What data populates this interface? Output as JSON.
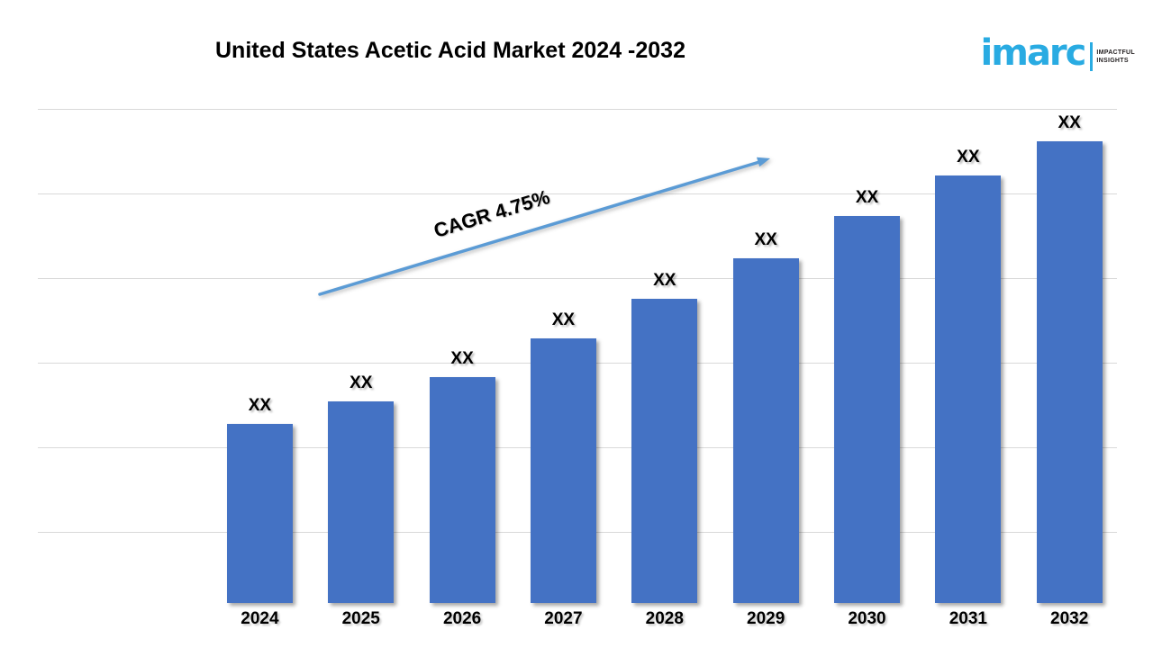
{
  "header": {
    "title": "United States Acetic Acid Market 2024 -2032"
  },
  "logo": {
    "brand": "imarc",
    "brand_color": "#29abe2",
    "tagline": [
      "IMPACTFUL",
      "INSIGHTS"
    ]
  },
  "chart_data": {
    "type": "bar",
    "title": "United States Acetic Acid Market 2024 -2032",
    "categories": [
      "2024",
      "2025",
      "2026",
      "2027",
      "2028",
      "2029",
      "2030",
      "2031",
      "2032"
    ],
    "values": [
      "XX",
      "XX",
      "XX",
      "XX",
      "XX",
      "XX",
      "XX",
      "XX",
      "XX"
    ],
    "relative_heights": [
      0.388,
      0.437,
      0.489,
      0.573,
      0.659,
      0.747,
      0.838,
      0.926,
      1.0
    ],
    "bar_color": "#4472c4",
    "gridline_color": "#d9d9d9",
    "gridline_count": 6,
    "annotation": {
      "label": "CAGR 4.75%",
      "arrow_color": "#5b9bd5"
    },
    "xlabel": "",
    "ylabel": "",
    "legend": null,
    "grid": true
  }
}
